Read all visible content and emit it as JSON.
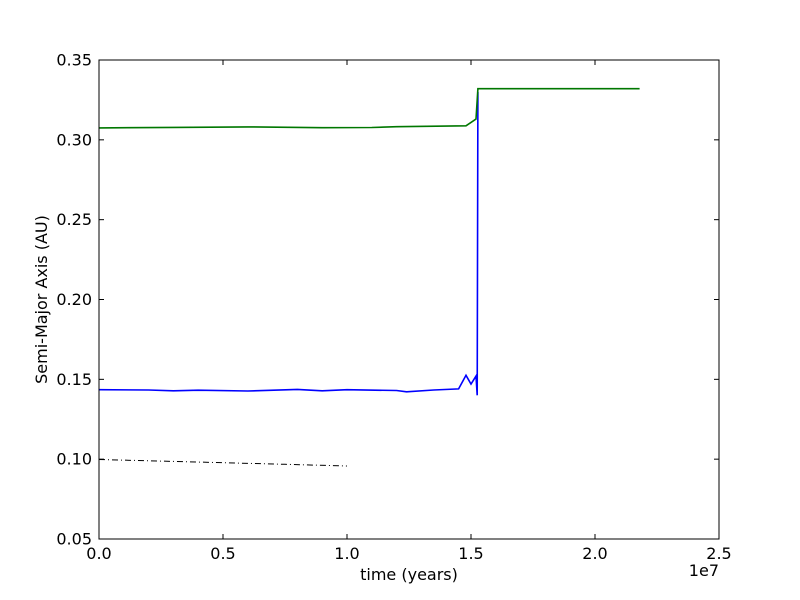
{
  "chart_data": {
    "type": "line",
    "title": "",
    "xlabel": "time (years)",
    "ylabel": "Semi-Major Axis (AU)",
    "x_offset_label": "1e7",
    "xlim": [
      0.0,
      2.5
    ],
    "ylim": [
      0.05,
      0.35
    ],
    "xticks": [
      0.0,
      0.5,
      1.0,
      1.5,
      2.0,
      2.5
    ],
    "xtick_labels": [
      "0.0",
      "0.5",
      "1.0",
      "1.5",
      "2.0",
      "2.5"
    ],
    "yticks": [
      0.05,
      0.1,
      0.15,
      0.2,
      0.25,
      0.3,
      0.35
    ],
    "ytick_labels": [
      "0.05",
      "0.10",
      "0.15",
      "0.20",
      "0.25",
      "0.30",
      "0.35"
    ],
    "grid": false,
    "series": [
      {
        "color": "#0000ff",
        "style": "solid",
        "points": [
          [
            0.0,
            0.1435
          ],
          [
            0.2,
            0.1433
          ],
          [
            0.3,
            0.1428
          ],
          [
            0.4,
            0.1432
          ],
          [
            0.6,
            0.1427
          ],
          [
            0.8,
            0.1437
          ],
          [
            0.9,
            0.1428
          ],
          [
            1.0,
            0.1435
          ],
          [
            1.2,
            0.143
          ],
          [
            1.24,
            0.1422
          ],
          [
            1.35,
            0.1433
          ],
          [
            1.45,
            0.144
          ],
          [
            1.48,
            0.1525
          ],
          [
            1.5,
            0.147
          ],
          [
            1.52,
            0.152
          ],
          [
            1.525,
            0.14
          ],
          [
            1.528,
            0.33
          ]
        ]
      },
      {
        "color": "#007700",
        "style": "solid",
        "points": [
          [
            0.0,
            0.3075
          ],
          [
            0.3,
            0.3078
          ],
          [
            0.6,
            0.3081
          ],
          [
            0.9,
            0.3076
          ],
          [
            1.1,
            0.3077
          ],
          [
            1.2,
            0.3082
          ],
          [
            1.4,
            0.3086
          ],
          [
            1.48,
            0.3088
          ],
          [
            1.52,
            0.313
          ],
          [
            1.528,
            0.332
          ],
          [
            2.18,
            0.332
          ]
        ]
      },
      {
        "color": "#000000",
        "style": "dashdot",
        "points": [
          [
            0.0,
            0.0998
          ],
          [
            0.25,
            0.0988
          ],
          [
            0.5,
            0.0978
          ],
          [
            0.75,
            0.0968
          ],
          [
            1.0,
            0.0957
          ]
        ]
      }
    ]
  }
}
